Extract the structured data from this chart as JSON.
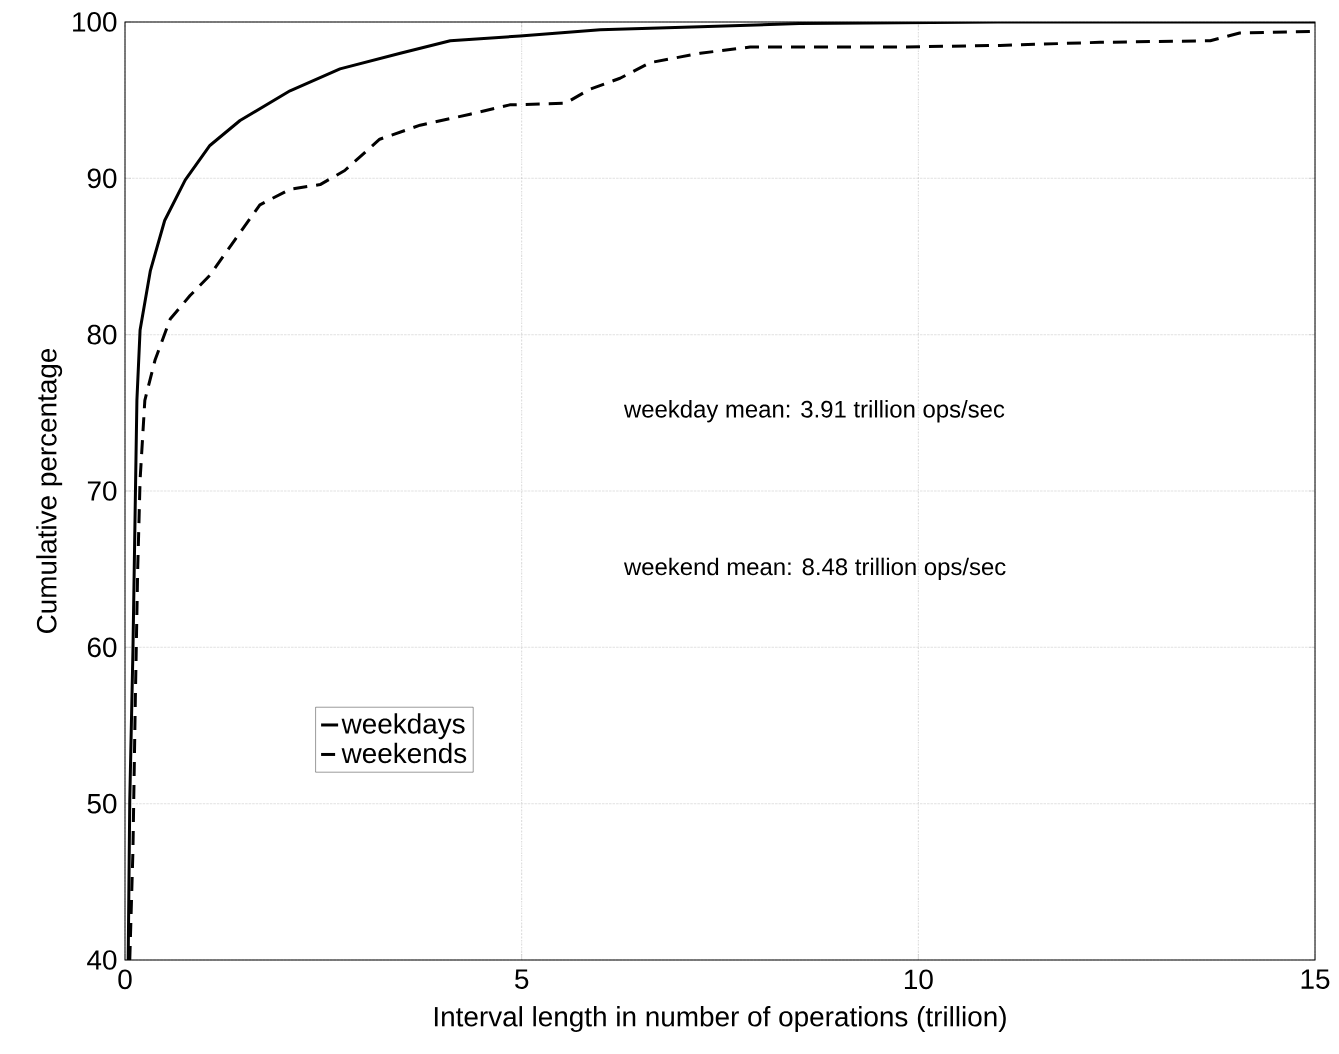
{
  "chart_data": {
    "type": "line",
    "xlabel": "Interval length in number of operations (trillion)",
    "ylabel": "Cumulative percentage",
    "annotations": [
      "weekday mean: 3.91 trillion ops/sec",
      "weekend mean: 8.48 trillion ops/sec"
    ],
    "series": [
      {
        "name": "weekdays",
        "color": "#000000",
        "line_style": "solid",
        "x": [
          0.04,
          0.06,
          0.1,
          0.13,
          0.15,
          0.19,
          0.32,
          0.5,
          0.76,
          1.07,
          1.45,
          2.08,
          2.71,
          3.47,
          4.1,
          4.98,
          5.99,
          7.25,
          8.5,
          11,
          15
        ],
        "values": [
          40,
          50.2,
          59.8,
          69.4,
          75.8,
          80.3,
          84.1,
          87.3,
          89.9,
          92.1,
          93.7,
          95.6,
          97.0,
          98.0,
          98.8,
          99.1,
          99.5,
          99.7,
          99.9,
          100,
          100
        ]
      },
      {
        "name": "weekends",
        "color": "#000000",
        "line_style": "dashed",
        "x": [
          0.06,
          0.1,
          0.13,
          0.16,
          0.19,
          0.25,
          0.38,
          0.57,
          0.82,
          1.07,
          1.39,
          1.7,
          2.08,
          2.46,
          2.77,
          3.21,
          3.72,
          4.35,
          4.85,
          5.55,
          5.86,
          6.24,
          6.62,
          7.25,
          7.88,
          9.77,
          11.03,
          12.29,
          13.68,
          14.05,
          15
        ],
        "values": [
          40,
          47,
          56.6,
          65,
          70.7,
          75.8,
          78.4,
          81,
          82.5,
          83.8,
          86.1,
          88.3,
          89.3,
          89.6,
          90.5,
          92.5,
          93.4,
          94.1,
          94.7,
          94.8,
          95.7,
          96.4,
          97.4,
          98.0,
          98.4,
          98.4,
          98.5,
          98.7,
          98.8,
          99.3,
          99.4
        ]
      }
    ],
    "xlim": [
      0,
      15
    ],
    "ylim": [
      40,
      100
    ],
    "xticks": [
      0,
      5,
      10,
      15
    ],
    "yticks": [
      40,
      50,
      60,
      70,
      80,
      90,
      100
    ],
    "grid": true,
    "legend": "left",
    "marker": "none"
  }
}
